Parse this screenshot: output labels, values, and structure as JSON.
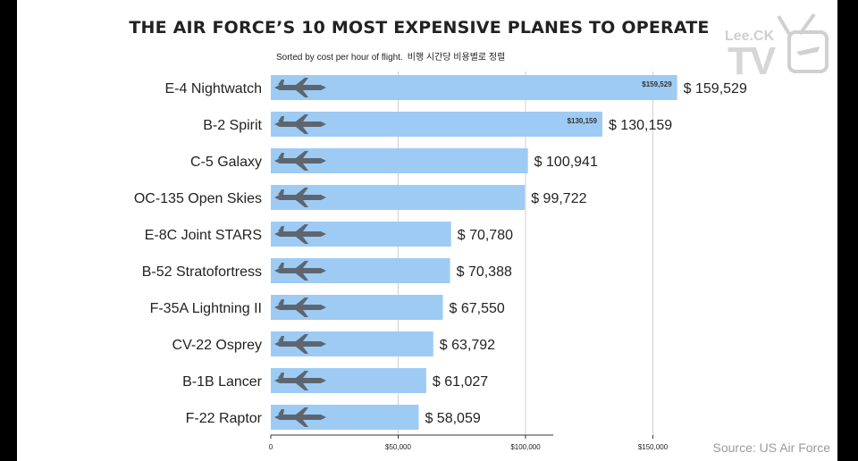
{
  "title": "THE AIR FORCE’S 10 MOST  EXPENSIVE PLANES TO OPERATE",
  "subtitle": "Sorted by cost per hour of flight.",
  "subtitle_ko": "비행 시간당 비용별로 정렬",
  "source": "Source: US Air Force",
  "logo": {
    "top": "Lee.CK",
    "bottom": "TV"
  },
  "colors": {
    "bar": "#9ecbf3",
    "grid": "#d0d0d0",
    "text": "#222222"
  },
  "chart_data": {
    "type": "bar",
    "orientation": "horizontal",
    "title": "THE AIR FORCE’S 10 MOST  EXPENSIVE PLANES TO OPERATE",
    "subtitle": "Sorted by cost per hour of flight.",
    "categories": [
      "E-4 Nightwatch",
      "B-2 Spirit",
      "C-5 Galaxy",
      "OC-135 Open Skies",
      "E-8C Joint STARS",
      "B-52 Stratofortress",
      "F-35A Lightning II",
      "CV-22 Osprey",
      "B-1B Lancer",
      "F-22 Raptor"
    ],
    "values": [
      159529,
      130159,
      100941,
      99722,
      70780,
      70388,
      67550,
      63792,
      61027,
      58059
    ],
    "value_labels": [
      "$ 159,529",
      "$ 130,159",
      "$ 100,941",
      "$ 99,722",
      "$ 70,780",
      "$ 70,388",
      "$ 67,550",
      "$ 63,792",
      "$ 61,027",
      "$ 58,059"
    ],
    "inner_labels": [
      "$159,529",
      "$130,159",
      "",
      "",
      "",
      "",
      "",
      "",
      "",
      ""
    ],
    "icons": [
      "e4-plane-icon",
      "b2-bomber-icon",
      "c5-plane-icon",
      "oc135-plane-icon",
      "e8c-plane-icon",
      "b52-plane-icon",
      "f35-jet-icon",
      "cv22-tiltrotor-icon",
      "b1b-bomber-icon",
      "f22-jet-icon"
    ],
    "xticks": [
      0,
      50000,
      100000,
      150000
    ],
    "xtick_labels": [
      "0",
      "$50,000",
      "$100,000",
      "$150,000"
    ],
    "xlim": [
      0,
      166000
    ],
    "grid": true
  }
}
